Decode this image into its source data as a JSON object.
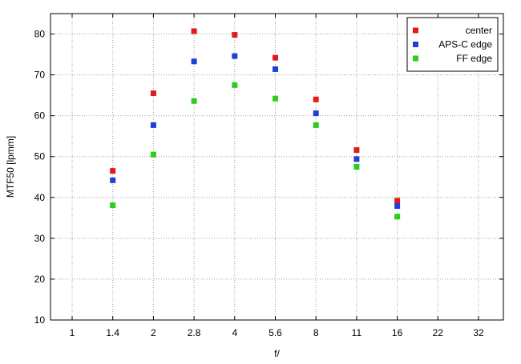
{
  "chart_data": {
    "type": "scatter",
    "title": "",
    "xlabel": "f/",
    "ylabel": "MTF50 [lpmm]",
    "categories": [
      "1",
      "1.4",
      "2",
      "2.8",
      "4",
      "5.6",
      "8",
      "11",
      "16",
      "22",
      "32"
    ],
    "ylim": [
      10,
      85
    ],
    "yticks": [
      10,
      20,
      30,
      40,
      50,
      60,
      70,
      80
    ],
    "grid": true,
    "legend_position": "top-right",
    "series": [
      {
        "name": "center",
        "color": "#e31a1c",
        "x": [
          "1.4",
          "2",
          "2.8",
          "4",
          "5.6",
          "8",
          "11",
          "16"
        ],
        "values": [
          46.5,
          65.5,
          80.7,
          79.8,
          74.2,
          64.0,
          51.6,
          39.2
        ]
      },
      {
        "name": "APS-C edge",
        "color": "#1f3fd6",
        "x": [
          "1.4",
          "2",
          "2.8",
          "4",
          "5.6",
          "8",
          "11",
          "16"
        ],
        "values": [
          44.2,
          57.7,
          73.3,
          74.6,
          71.4,
          60.6,
          49.4,
          37.9
        ]
      },
      {
        "name": "FF edge",
        "color": "#2ecc1f",
        "x": [
          "1.4",
          "2",
          "2.8",
          "4",
          "5.6",
          "8",
          "11",
          "16"
        ],
        "values": [
          38.1,
          50.5,
          63.6,
          67.5,
          64.2,
          57.7,
          47.5,
          35.3
        ]
      }
    ]
  }
}
